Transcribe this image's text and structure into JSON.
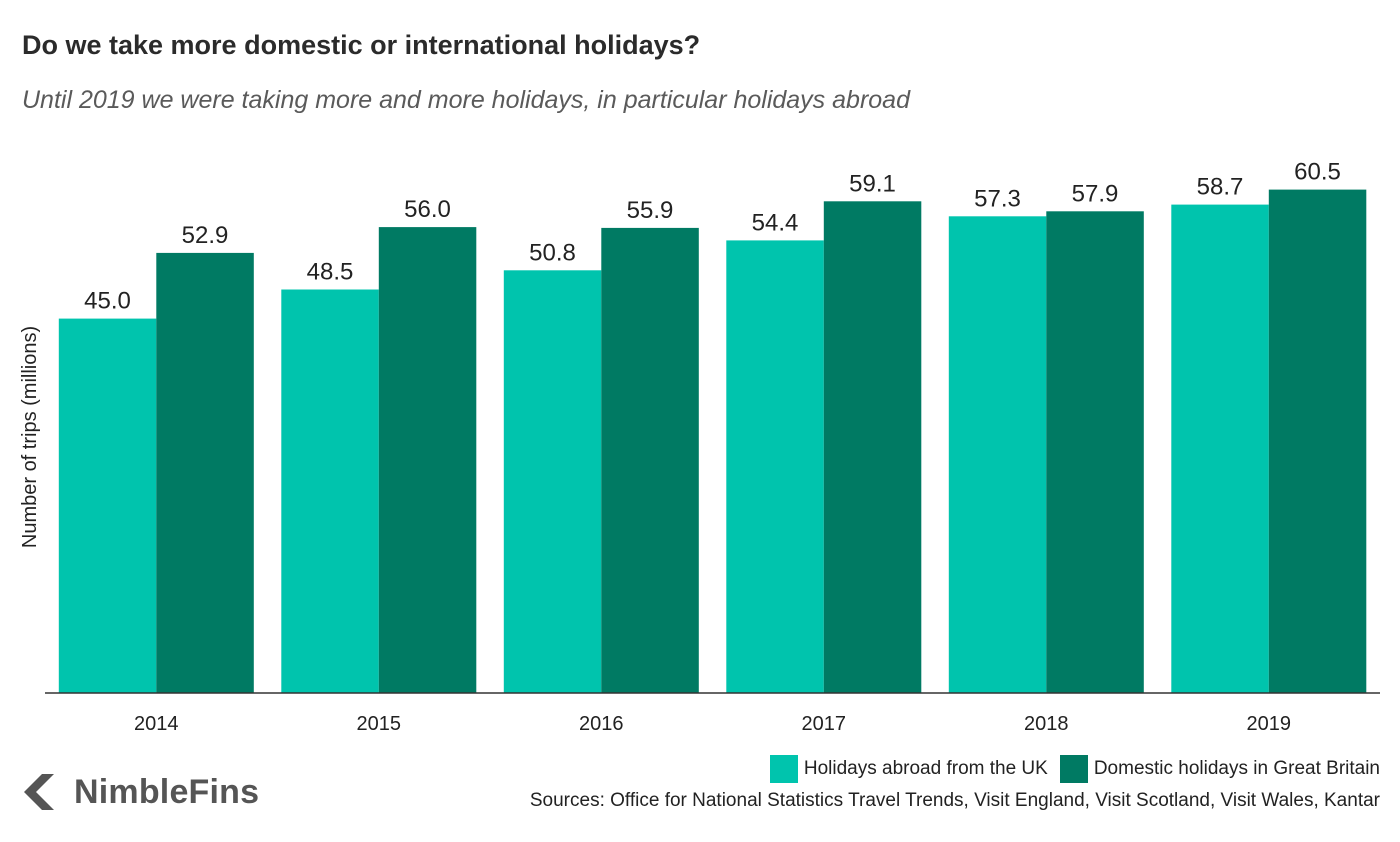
{
  "chart_data": {
    "type": "bar",
    "title": "Do we take more domestic or international holidays?",
    "subtitle": "Until 2019 we were taking more and more holidays, in particular holidays abroad",
    "xlabel": "",
    "ylabel": "Number of trips (millions)",
    "ylim": [
      0,
      65
    ],
    "grid": false,
    "legend_position": "bottom-right",
    "categories": [
      "2014",
      "2015",
      "2016",
      "2017",
      "2018",
      "2019"
    ],
    "series": [
      {
        "name": "Holidays abroad from the UK",
        "color": "#00c4ad",
        "values": [
          45.0,
          48.5,
          50.8,
          54.4,
          57.3,
          58.7
        ],
        "labels": [
          "45.0",
          "48.5",
          "50.8",
          "54.4",
          "57.3",
          "58.7"
        ]
      },
      {
        "name": "Domestic holidays in Great Britain",
        "color": "#007a63",
        "values": [
          52.9,
          56.0,
          55.9,
          59.1,
          57.9,
          60.5
        ],
        "labels": [
          "52.9",
          "56.0",
          "55.9",
          "59.1",
          "57.9",
          "60.5"
        ]
      }
    ]
  },
  "footer": {
    "sources": "Sources: Office for National Statistics Travel Trends, Visit England, Visit Scotland, Visit Wales, Kantar",
    "logo_text": "NimbleFins"
  },
  "colors": {
    "abroad": "#00c4ad",
    "domestic": "#007a63",
    "axis": "#333333",
    "logo": "#555555"
  }
}
